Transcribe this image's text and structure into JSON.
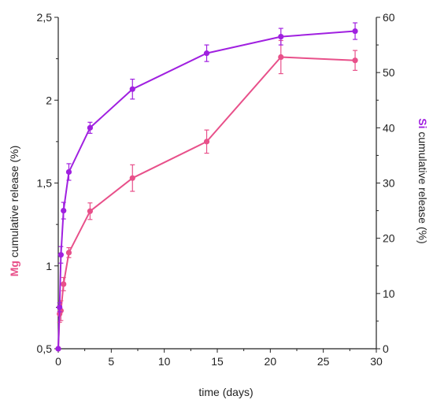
{
  "chart_data": {
    "type": "line",
    "xlabel": "time (days)",
    "ylabel_left": {
      "element": "Mg",
      "text": " cumulative release (%)"
    },
    "ylabel_right": {
      "element": "Si",
      "text": " cumulative release (%)"
    },
    "xlim": [
      0,
      30
    ],
    "ylim_left": [
      0.5,
      2.5
    ],
    "ylim_right": [
      0,
      60
    ],
    "x_ticks": [
      "0",
      "5",
      "10",
      "15",
      "20",
      "25",
      "30"
    ],
    "y_left_ticks": [
      "0,5",
      "1",
      "1,5",
      "2",
      "2,5"
    ],
    "y_right_ticks": [
      "0",
      "10",
      "20",
      "30",
      "40",
      "50",
      "60"
    ],
    "grid": false,
    "series": [
      {
        "axis": "left",
        "color": "#e8508a",
        "x": [
          0,
          0.125,
          0.25,
          0.5,
          1,
          3,
          7,
          14,
          21,
          28
        ],
        "y": [
          0.5,
          0.71,
          0.73,
          0.89,
          1.08,
          1.33,
          1.53,
          1.75,
          2.26,
          2.24
        ],
        "err": [
          0.0,
          0.05,
          0.06,
          0.04,
          0.03,
          0.05,
          0.08,
          0.07,
          0.1,
          0.06
        ]
      },
      {
        "axis": "right",
        "color": "#a020e0",
        "x": [
          0,
          0.125,
          0.25,
          0.5,
          1,
          3,
          7,
          14,
          21,
          28
        ],
        "y": [
          0,
          7.5,
          17,
          25,
          32,
          40,
          47,
          53.5,
          56.5,
          57.5
        ],
        "err": [
          0,
          0.8,
          1.5,
          1.5,
          1.5,
          1.0,
          1.8,
          1.5,
          1.5,
          1.5
        ]
      }
    ]
  }
}
